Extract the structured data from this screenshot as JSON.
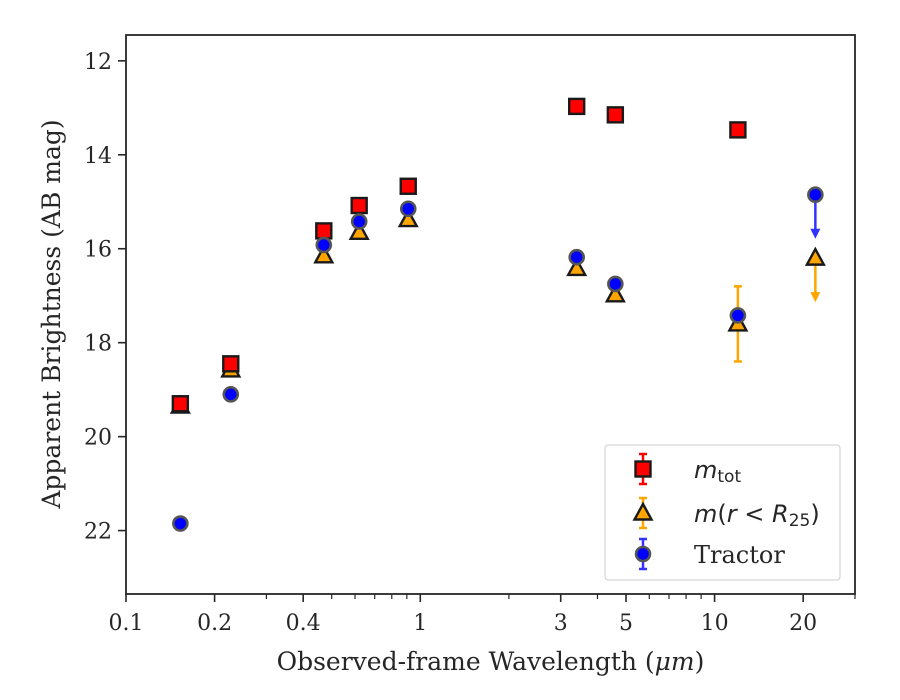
{
  "chart_data": {
    "type": "scatter",
    "xlabel_prefix": "Observed-frame Wavelength (",
    "xlabel_unit": "μm",
    "xlabel_suffix": ")",
    "ylabel": "Apparent Brightness (AB mag)",
    "x_scale": "log",
    "xlim": [
      0.1,
      30
    ],
    "ylim": [
      23.35,
      11.45
    ],
    "y_inverted": true,
    "grid": false,
    "legend_position": "lower right",
    "x_ticks": [
      {
        "value": 0.1,
        "label": "0.1"
      },
      {
        "value": 0.2,
        "label": "0.2"
      },
      {
        "value": 0.4,
        "label": "0.4"
      },
      {
        "value": 1,
        "label": "1"
      },
      {
        "value": 3,
        "label": "3"
      },
      {
        "value": 5,
        "label": "5"
      },
      {
        "value": 10,
        "label": "10"
      },
      {
        "value": 20,
        "label": "20"
      }
    ],
    "x_minor_ticks": [
      0.3,
      0.5,
      0.6,
      0.7,
      0.8,
      0.9,
      2,
      4,
      6,
      7,
      8,
      9,
      30
    ],
    "y_ticks": [
      {
        "value": 12,
        "label": "12"
      },
      {
        "value": 14,
        "label": "14"
      },
      {
        "value": 16,
        "label": "16"
      },
      {
        "value": 18,
        "label": "18"
      },
      {
        "value": 20,
        "label": "20"
      },
      {
        "value": 22,
        "label": "22"
      }
    ],
    "series": [
      {
        "name_main": "m",
        "name_sub": "tot",
        "marker": "square",
        "fill": "#ff0000",
        "error_color": "#ff0000",
        "points": [
          {
            "x": 0.153,
            "y": 19.3,
            "err": 0.08
          },
          {
            "x": 0.227,
            "y": 18.45,
            "err": 0.05
          },
          {
            "x": 0.47,
            "y": 15.62,
            "err": 0.03
          },
          {
            "x": 0.62,
            "y": 15.08,
            "err": 0.03
          },
          {
            "x": 0.91,
            "y": 14.67,
            "err": 0.03
          },
          {
            "x": 3.4,
            "y": 12.97,
            "err": 0.02
          },
          {
            "x": 4.6,
            "y": 13.15,
            "err": 0.02
          },
          {
            "x": 12.0,
            "y": 13.47,
            "err": 0.03
          }
        ]
      },
      {
        "name_main": "m",
        "name_paren": "(",
        "name_r": "r",
        "name_lt": " < ",
        "name_R": "R",
        "name_sub": "25",
        "name_close": ")",
        "marker": "triangle",
        "fill": "#ffa500",
        "error_color": "#ffa500",
        "points": [
          {
            "x": 0.153,
            "y": 19.35,
            "err": 0.08
          },
          {
            "x": 0.227,
            "y": 18.58,
            "err": 0.05
          },
          {
            "x": 0.47,
            "y": 16.15,
            "err": 0.03
          },
          {
            "x": 0.62,
            "y": 15.65,
            "err": 0.03
          },
          {
            "x": 0.91,
            "y": 15.38,
            "err": 0.03
          },
          {
            "x": 3.4,
            "y": 16.42,
            "err": 0.03
          },
          {
            "x": 4.6,
            "y": 16.98,
            "err": 0.04
          },
          {
            "x": 12.0,
            "y": 17.6,
            "err": 0.8
          },
          {
            "x": 22.0,
            "y": 16.2,
            "upper_limit": true
          }
        ]
      },
      {
        "name": "Tractor",
        "marker": "circle",
        "fill": "#0000ff",
        "error_color": "#3333ff",
        "points": [
          {
            "x": 0.153,
            "y": 21.85,
            "err": 0.05
          },
          {
            "x": 0.227,
            "y": 19.1,
            "err": 0.04
          },
          {
            "x": 0.47,
            "y": 15.92,
            "err": 0.03
          },
          {
            "x": 0.62,
            "y": 15.42,
            "err": 0.03
          },
          {
            "x": 0.91,
            "y": 15.15,
            "err": 0.03
          },
          {
            "x": 3.4,
            "y": 16.18,
            "err": 0.03
          },
          {
            "x": 4.6,
            "y": 16.75,
            "err": 0.03
          },
          {
            "x": 12.0,
            "y": 17.42,
            "err": 0.05
          },
          {
            "x": 22.0,
            "y": 14.85,
            "upper_limit": true
          }
        ]
      }
    ]
  }
}
